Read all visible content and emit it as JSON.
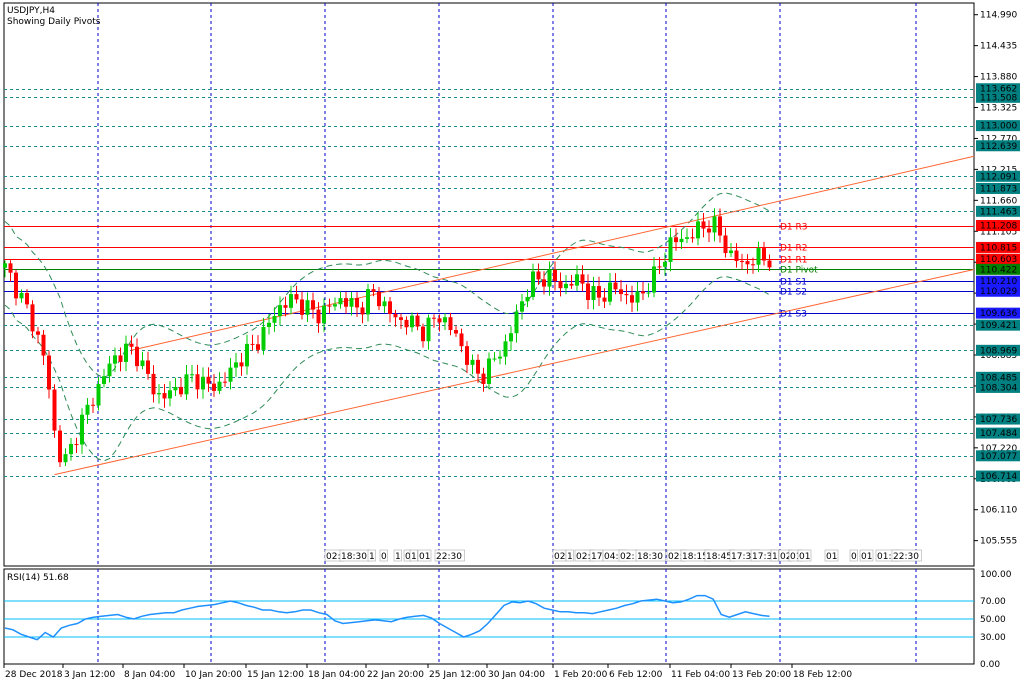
{
  "header": {
    "symbol": "USDJPY,H4",
    "indicator_note": "Showing Daily Pivots"
  },
  "rsi_panel": {
    "title": "RSI(14) 51.68"
  },
  "colors": {
    "background": "#ffffff",
    "bull_candle": "#00cc00",
    "bear_candle": "#ff0000",
    "grid": "#0000cc",
    "trendline": "#ff6633",
    "envelope": "#2e8b57",
    "rsi_line": "#1e90ff",
    "rsi_level": "#00bfff",
    "pivot_resistance": "#ff0000",
    "pivot_central": "#008000",
    "pivot_support": "#0000cc",
    "badge_red": "#ff0000",
    "badge_green": "#008000",
    "badge_blue": "#1a1aff",
    "badge_teal": "#008080"
  },
  "chart_data": [
    {
      "type": "candlestick",
      "title": "USDJPY,H4",
      "ylim": [
        105.1,
        115.2
      ],
      "y_tick_labels": [
        "114.990",
        "114.435",
        "113.880",
        "113.325",
        "112.770",
        "112.215",
        "111.660",
        "111.105",
        "110.550",
        "109.995",
        "109.440",
        "108.885",
        "108.330",
        "107.775",
        "107.220",
        "106.665",
        "106.110",
        "105.555"
      ],
      "x_tick_labels": [
        "28 Dec 2018",
        "3 Jan 12:00",
        "8 Jan 04:00",
        "10 Jan 20:00",
        "15 Jan 12:00",
        "18 Jan 04:00",
        "22 Jan 20:00",
        "25 Jan 12:00",
        "30 Jan 04:00",
        "1 Feb 20:00",
        "6 Feb 12:00",
        "11 Feb 04:00",
        "13 Feb 20:00",
        "18 Feb 12:00"
      ],
      "close_series": [
        110.45,
        110.2,
        109.9,
        109.6,
        109.2,
        108.7,
        107.5,
        106.9,
        107.2,
        107.6,
        107.9,
        108.2,
        108.5,
        108.8,
        108.9,
        109.0,
        108.9,
        108.6,
        108.3,
        108.1,
        108.2,
        108.3,
        108.4,
        108.5,
        108.4,
        108.3,
        108.35,
        108.5,
        108.7,
        108.9,
        109.0,
        109.2,
        109.4,
        109.7,
        109.8,
        109.9,
        109.8,
        109.7,
        109.6,
        109.7,
        109.8,
        109.9,
        109.8,
        109.7,
        109.9,
        110.0,
        109.8,
        109.6,
        109.5,
        109.5,
        109.4,
        109.3,
        109.5,
        109.6,
        109.4,
        109.2,
        108.9,
        108.6,
        108.5,
        108.7,
        108.9,
        109.1,
        109.5,
        109.9,
        110.2,
        110.25,
        110.3,
        110.2,
        110.1,
        110.2,
        110.25,
        110.0,
        109.9,
        110.0,
        110.1,
        110.0,
        109.9,
        109.9,
        110.1,
        110.3,
        110.6,
        110.9,
        110.95,
        111.0,
        111.1,
        111.2,
        111.25,
        111.05,
        110.7,
        110.6,
        110.5,
        110.6,
        110.65,
        110.6
      ],
      "annotations": [
        "D1 R3",
        "D1 R2",
        "D1 R1",
        "D1 Pivot",
        "D1 S1",
        "D1 S2",
        "D1 S3"
      ]
    },
    {
      "type": "line",
      "title": "RSI(14) 51.68",
      "ylim": [
        0,
        100
      ],
      "y_tick_labels": [
        "100.00",
        "70.00",
        "50.00",
        "30.00",
        "0.00"
      ],
      "levels": [
        70,
        50,
        30
      ],
      "values": [
        40,
        38,
        33,
        30,
        27,
        35,
        30,
        40,
        43,
        45,
        50,
        52,
        53,
        54,
        55,
        52,
        50,
        53,
        55,
        56,
        57,
        57,
        60,
        62,
        64,
        65,
        66,
        68,
        70,
        68,
        65,
        63,
        60,
        60,
        58,
        57,
        58,
        60,
        60,
        57,
        55,
        48,
        45,
        46,
        47,
        48,
        49,
        48,
        47,
        50,
        52,
        53,
        54,
        51,
        45,
        40,
        35,
        30,
        33,
        37,
        45,
        55,
        65,
        69,
        68,
        70,
        67,
        62,
        60,
        58,
        58,
        57,
        57,
        56,
        58,
        60,
        62,
        65,
        67,
        70,
        71,
        72,
        70,
        68,
        69,
        72,
        76,
        76,
        72,
        55,
        52,
        55,
        58,
        56,
        54,
        53
      ]
    }
  ],
  "price_badges": [
    {
      "label": "113.662",
      "value": 113.662,
      "kind": "grey"
    },
    {
      "label": "113.508",
      "value": 113.508,
      "kind": "grey"
    },
    {
      "label": "113.000",
      "value": 113.0,
      "kind": "grey"
    },
    {
      "label": "112.639",
      "value": 112.639,
      "kind": "grey"
    },
    {
      "label": "112.091",
      "value": 112.091,
      "kind": "grey"
    },
    {
      "label": "111.873",
      "value": 111.873,
      "kind": "grey"
    },
    {
      "label": "111.463",
      "value": 111.463,
      "kind": "grey"
    },
    {
      "label": "111.208",
      "value": 111.208,
      "kind": "red"
    },
    {
      "label": "110.815",
      "value": 110.815,
      "kind": "red"
    },
    {
      "label": "110.603",
      "value": 110.603,
      "kind": "red"
    },
    {
      "label": "110.422",
      "value": 110.422,
      "kind": "green"
    },
    {
      "label": "110.210",
      "value": 110.21,
      "kind": "blue"
    },
    {
      "label": "110.029",
      "value": 110.029,
      "kind": "blue"
    },
    {
      "label": "109.636",
      "value": 109.636,
      "kind": "blue"
    },
    {
      "label": "109.421",
      "value": 109.421,
      "kind": "grey"
    },
    {
      "label": "108.969",
      "value": 108.969,
      "kind": "grey"
    },
    {
      "label": "108.485",
      "value": 108.485,
      "kind": "grey"
    },
    {
      "label": "108.304",
      "value": 108.304,
      "kind": "grey"
    },
    {
      "label": "107.736",
      "value": 107.736,
      "kind": "grey"
    },
    {
      "label": "107.484",
      "value": 107.484,
      "kind": "grey"
    },
    {
      "label": "107.077",
      "value": 107.077,
      "kind": "grey"
    },
    {
      "label": "106.714",
      "value": 106.714,
      "kind": "grey"
    }
  ],
  "pivot_lines": [
    {
      "label": "D1 R3",
      "value": 111.208,
      "kind": "resistance"
    },
    {
      "label": "D1 R2",
      "value": 110.815,
      "kind": "resistance"
    },
    {
      "label": "D1 R1",
      "value": 110.603,
      "kind": "resistance"
    },
    {
      "label": "D1 Pivot",
      "value": 110.422,
      "kind": "central"
    },
    {
      "label": "D1 S1",
      "value": 110.21,
      "kind": "support"
    },
    {
      "label": "D1 S2",
      "value": 110.029,
      "kind": "support"
    },
    {
      "label": "D1 S3",
      "value": 109.636,
      "kind": "support"
    }
  ],
  "trendlines": [
    {
      "name": "upper-channel",
      "p1": {
        "bar": 23,
        "price": 108.97
      },
      "p2": {
        "bar": 181,
        "price": 112.45
      }
    },
    {
      "name": "lower-channel",
      "p1": {
        "bar": 9,
        "price": 106.74
      },
      "p2": {
        "bar": 181,
        "price": 110.42
      }
    }
  ],
  "overlap_labels_1": [
    "02:",
    "18:30",
    "1",
    "0",
    "1",
    "0",
    "1",
    "01",
    "22:30"
  ],
  "overlap_labels_2": [
    "02",
    "1",
    "02:",
    "17",
    "04:0",
    "02:",
    "18:30",
    "02:",
    "18:15",
    "18:45",
    "17:30",
    "17:30",
    "1",
    "02",
    "01",
    "01",
    "01",
    "0",
    "01",
    "01:3",
    "22:30"
  ]
}
